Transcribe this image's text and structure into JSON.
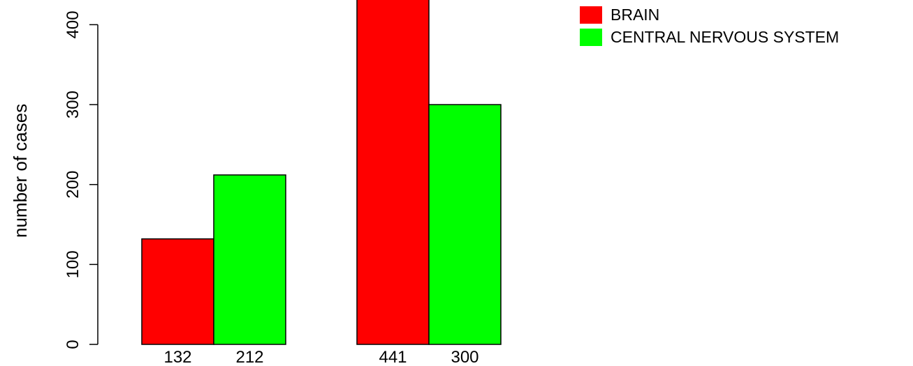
{
  "chart_data": {
    "type": "bar",
    "ylabel": "number of cases",
    "ylim": [
      0,
      440
    ],
    "yticks": [
      0,
      100,
      200,
      300,
      400
    ],
    "groups": [
      {
        "bars": [
          {
            "series": "BRAIN",
            "value": 132,
            "label": "132"
          },
          {
            "series": "CENTRAL NERVOUS SYSTEM",
            "value": 212,
            "label": "212"
          }
        ]
      },
      {
        "bars": [
          {
            "series": "BRAIN",
            "value": 441,
            "label": "441"
          },
          {
            "series": "CENTRAL NERVOUS SYSTEM",
            "value": 300,
            "label": "300"
          }
        ]
      }
    ],
    "series": [
      {
        "name": "BRAIN",
        "color": "#ff0000"
      },
      {
        "name": "CENTRAL NERVOUS SYSTEM",
        "color": "#00ff00"
      }
    ],
    "legend_position": "top-right",
    "grid": false
  }
}
